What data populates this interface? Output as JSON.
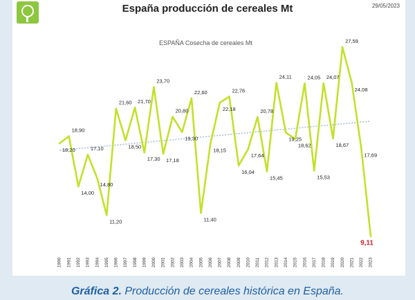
{
  "header": {
    "title": "España producción de cereales Mt",
    "date": "29/05/2023",
    "logo_icon": "leaf-circle-logo-icon"
  },
  "caption": {
    "label": "Gráfica 2.",
    "text": " Producción de cereales histórica en España."
  },
  "colors": {
    "line": "#c3e02a",
    "trend": "#a9bfd8",
    "last_label": "#d3262a",
    "caption": "#1f5fa4"
  },
  "chart_data": {
    "type": "line",
    "title": "ESPAÑA Cosecha de cereales   Mt",
    "xlabel": "",
    "ylabel": "",
    "ylim": [
      9,
      28
    ],
    "grid": false,
    "legend": "none",
    "trendline": true,
    "x": [
      "1990",
      "1991",
      "1992",
      "1993",
      "1994",
      "1995",
      "1996",
      "1997",
      "1998",
      "1999",
      "2000",
      "2001",
      "2002",
      "2003",
      "2004",
      "2005",
      "2006",
      "2007",
      "2008",
      "2009",
      "2010",
      "2011",
      "2012",
      "2013",
      "2014",
      "2015",
      "2016",
      "2017",
      "2018",
      "2019",
      "2020",
      "2021",
      "2022",
      "2023"
    ],
    "series": [
      {
        "values": [
          18.2,
          18.9,
          14.0,
          17.1,
          14.8,
          11.2,
          21.6,
          18.5,
          21.7,
          17.3,
          23.7,
          17.18,
          20.8,
          19.3,
          22.6,
          11.4,
          18.15,
          22.18,
          22.76,
          16.04,
          17.64,
          20.78,
          15.45,
          24.11,
          19.25,
          18.62,
          24.05,
          15.53,
          24.07,
          18.67,
          27.59,
          24.08,
          17.69,
          9.11
        ],
        "labels": [
          "18,20",
          "18,90",
          "14,00",
          "17,10",
          "14,80",
          "11,20",
          "21,60",
          "18,50",
          "21,70",
          "17,30",
          "23,70",
          "17,18",
          "20,80",
          "19,30",
          "22,60",
          "11,40",
          "18,15",
          "22,18",
          "22,76",
          "16,04",
          "17,64",
          "20,78",
          "15,45",
          "24,11",
          "19,25",
          "18,62",
          "24,05",
          "15,53",
          "24,07",
          "18,67",
          "27,59",
          "24,08",
          "17,69",
          "9,11"
        ]
      }
    ]
  }
}
